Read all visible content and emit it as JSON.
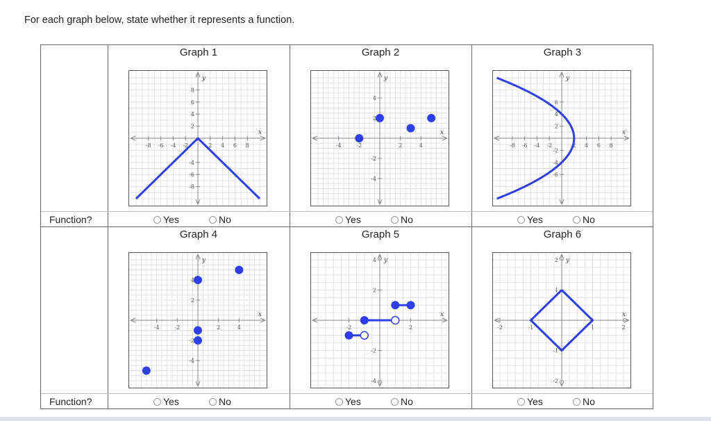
{
  "instruction": "For each graph below, state whether it represents a function.",
  "row_label": "Function?",
  "yes_label": "Yes",
  "no_label": "No",
  "accent_color": "#2e3fe6",
  "graphs": [
    {
      "title": "Graph 1",
      "xticks": [
        "-8",
        "-6",
        "-4",
        "-2",
        "2",
        "4",
        "6",
        "8"
      ],
      "yticks": [
        "8",
        "6",
        "4",
        "2",
        "-4",
        "-6",
        "-8"
      ],
      "xvar": "x",
      "yvar": "y"
    },
    {
      "title": "Graph 2",
      "xticks": [
        "-4",
        "-2",
        "2",
        "4"
      ],
      "yticks": [
        "4",
        "2",
        "-2",
        "-4"
      ],
      "xvar": "x",
      "yvar": "y"
    },
    {
      "title": "Graph 3",
      "xticks": [
        "-8",
        "-6",
        "-4",
        "-2",
        "2",
        "4",
        "6",
        "8"
      ],
      "yticks": [
        "6",
        "4",
        "2",
        "-2",
        "-4",
        "-6"
      ],
      "xvar": "x",
      "yvar": "y"
    },
    {
      "title": "Graph 4",
      "xticks": [
        "-4",
        "-2",
        "2",
        "4"
      ],
      "yticks": [
        "4",
        "2",
        "-2",
        "-4"
      ],
      "xvar": "x",
      "yvar": "y"
    },
    {
      "title": "Graph 5",
      "xticks": [
        "-2",
        "2"
      ],
      "yticks": [
        "4",
        "2",
        "-2",
        "-4"
      ],
      "xvar": "x",
      "yvar": "y"
    },
    {
      "title": "Graph 6",
      "xticks": [
        "-2",
        "-1",
        "1",
        "2"
      ],
      "yticks": [
        "2",
        "1",
        "-1",
        "-2"
      ],
      "xvar": "x",
      "yvar": "y"
    }
  ],
  "chart_data": [
    {
      "type": "line",
      "title": "Graph 1",
      "range": 10,
      "segments": [
        {
          "points": [
            [
              -10,
              -10
            ],
            [
              0,
              0
            ],
            [
              10,
              -10
            ]
          ]
        }
      ],
      "dots": []
    },
    {
      "type": "scatter",
      "title": "Graph 2",
      "range": 6,
      "segments": [],
      "dots": [
        {
          "x": -2,
          "y": 0,
          "filled": true
        },
        {
          "x": 0,
          "y": 2,
          "filled": true
        },
        {
          "x": 3,
          "y": 1,
          "filled": true
        },
        {
          "x": 5,
          "y": 2,
          "filled": true
        }
      ]
    },
    {
      "type": "line",
      "title": "Graph 3",
      "range": 10,
      "segments": [
        {
          "curve": "x = 2 - y^2/8"
        }
      ],
      "dots": []
    },
    {
      "type": "scatter",
      "title": "Graph 4",
      "range": 6,
      "segments": [],
      "dots": [
        {
          "x": -5,
          "y": -5,
          "filled": true
        },
        {
          "x": 0,
          "y": 4,
          "filled": true
        },
        {
          "x": 0,
          "y": -1,
          "filled": true
        },
        {
          "x": 0,
          "y": -2,
          "filled": true
        },
        {
          "x": 4,
          "y": 5,
          "filled": true
        }
      ]
    },
    {
      "type": "line",
      "title": "Graph 5",
      "range": 4,
      "segments": [
        {
          "points": [
            [
              -2,
              -1
            ],
            [
              -1,
              -1
            ]
          ]
        },
        {
          "points": [
            [
              -1,
              0
            ],
            [
              1,
              0
            ]
          ]
        },
        {
          "points": [
            [
              1,
              1
            ],
            [
              2,
              1
            ]
          ]
        }
      ],
      "dots": [
        {
          "x": -2,
          "y": -1,
          "filled": true
        },
        {
          "x": -1,
          "y": -1,
          "filled": false
        },
        {
          "x": -1,
          "y": 0,
          "filled": true
        },
        {
          "x": 1,
          "y": 0,
          "filled": false
        },
        {
          "x": 1,
          "y": 1,
          "filled": true
        },
        {
          "x": 2,
          "y": 1,
          "filled": true
        }
      ]
    },
    {
      "type": "line",
      "title": "Graph 6",
      "range": 2,
      "segments": [
        {
          "points": [
            [
              0,
              1
            ],
            [
              1,
              0
            ],
            [
              0,
              -1
            ],
            [
              -1,
              0
            ],
            [
              0,
              1
            ]
          ]
        }
      ],
      "dots": []
    }
  ]
}
